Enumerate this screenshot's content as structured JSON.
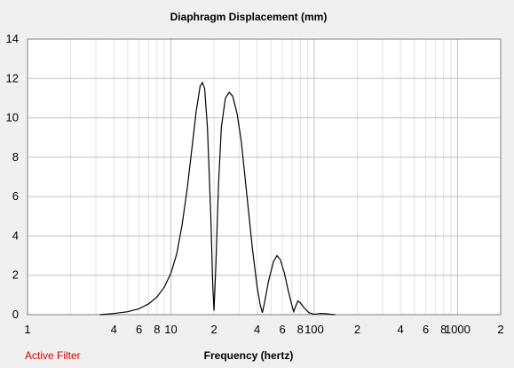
{
  "chart_data": {
    "type": "line",
    "title": "Diaphragm Displacement (mm)",
    "xlabel": "Frequency (hertz)",
    "ylabel": "",
    "x_scale": "log",
    "xlim": [
      1,
      2000
    ],
    "ylim": [
      0,
      14
    ],
    "grid": true,
    "y_ticks": [
      "0",
      "2",
      "4",
      "6",
      "8",
      "10",
      "12",
      "14"
    ],
    "x_ticks": [
      {
        "value": 1,
        "label": "1"
      },
      {
        "value": 4,
        "label": "4"
      },
      {
        "value": 6,
        "label": "6"
      },
      {
        "value": 8,
        "label": "8"
      },
      {
        "value": 10,
        "label": "10"
      },
      {
        "value": 20,
        "label": "2"
      },
      {
        "value": 40,
        "label": "4"
      },
      {
        "value": 60,
        "label": "6"
      },
      {
        "value": 80,
        "label": "8"
      },
      {
        "value": 100,
        "label": "100"
      },
      {
        "value": 200,
        "label": "2"
      },
      {
        "value": 400,
        "label": "4"
      },
      {
        "value": 600,
        "label": "6"
      },
      {
        "value": 800,
        "label": "8"
      },
      {
        "value": 1000,
        "label": "1000"
      },
      {
        "value": 2000,
        "label": "2"
      }
    ],
    "series": [
      {
        "color": "#000000",
        "points": [
          [
            3.2,
            0.0
          ],
          [
            4,
            0.06
          ],
          [
            5,
            0.15
          ],
          [
            6,
            0.3
          ],
          [
            7,
            0.55
          ],
          [
            8,
            0.9
          ],
          [
            9,
            1.4
          ],
          [
            10,
            2.1
          ],
          [
            11,
            3.1
          ],
          [
            12,
            4.6
          ],
          [
            13,
            6.4
          ],
          [
            14,
            8.4
          ],
          [
            15,
            10.3
          ],
          [
            16,
            11.6
          ],
          [
            16.6,
            11.8
          ],
          [
            17.2,
            11.5
          ],
          [
            18,
            9.5
          ],
          [
            19,
            5.0
          ],
          [
            19.6,
            1.5
          ],
          [
            20,
            0.2
          ],
          [
            20.6,
            2.5
          ],
          [
            21.5,
            6.6
          ],
          [
            22.5,
            9.5
          ],
          [
            24,
            11.0
          ],
          [
            25.5,
            11.3
          ],
          [
            27,
            11.1
          ],
          [
            29,
            10.2
          ],
          [
            31,
            8.8
          ],
          [
            34,
            6.0
          ],
          [
            37,
            3.4
          ],
          [
            40,
            1.4
          ],
          [
            42,
            0.5
          ],
          [
            43.5,
            0.1
          ],
          [
            45,
            0.6
          ],
          [
            48,
            1.7
          ],
          [
            52,
            2.7
          ],
          [
            55,
            3.0
          ],
          [
            58,
            2.8
          ],
          [
            62,
            2.1
          ],
          [
            66,
            1.2
          ],
          [
            70,
            0.45
          ],
          [
            72,
            0.15
          ],
          [
            74,
            0.4
          ],
          [
            77,
            0.7
          ],
          [
            80,
            0.6
          ],
          [
            85,
            0.35
          ],
          [
            92,
            0.1
          ],
          [
            100,
            0.02
          ],
          [
            110,
            0.06
          ],
          [
            120,
            0.05
          ],
          [
            130,
            0.02
          ],
          [
            140,
            0.0
          ]
        ]
      }
    ]
  },
  "status": {
    "label": "Active Filter",
    "color": "#cc0000"
  },
  "colors": {
    "background": "#f0f0f0",
    "plot_background": "#ffffff",
    "grid_major": "#c0c0c0",
    "grid_minor": "#e2e2e2",
    "line": "#000000"
  }
}
